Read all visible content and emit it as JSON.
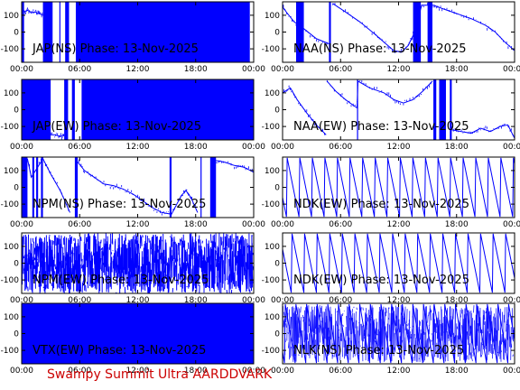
{
  "chart_data": [
    {
      "type": "line",
      "title": "JAP(NS) Phase: 13-Nov-2025",
      "pattern": "bands",
      "bands": [
        [
          0,
          0.25
        ],
        [
          2.2,
          3.2
        ],
        [
          3.9,
          4.0
        ],
        [
          4.5,
          4.9
        ],
        [
          5.6,
          23.6
        ]
      ],
      "trace": [
        [
          0.25,
          120
        ],
        [
          0.6,
          130
        ],
        [
          1.0,
          115
        ],
        [
          1.4,
          120
        ],
        [
          1.8,
          110
        ],
        [
          2.2,
          100
        ]
      ],
      "x_ticks": [
        "00:00",
        "06:00",
        "12:00",
        "18:00",
        "00:00"
      ],
      "y_ticks": [
        100,
        0,
        -100
      ],
      "xlim": [
        0,
        24
      ],
      "ylim": [
        -180,
        180
      ]
    },
    {
      "type": "line",
      "title": "NAA(NS) Phase: 13-Nov-2025",
      "pattern": "bands",
      "bands": [
        [
          1.4,
          2.2
        ],
        [
          4.8,
          5.0
        ],
        [
          13.5,
          14.3
        ],
        [
          15.0,
          15.5
        ]
      ],
      "trace": [
        [
          0,
          150
        ],
        [
          0.5,
          110
        ],
        [
          1.2,
          60
        ],
        [
          2.2,
          20
        ],
        [
          3.5,
          -40
        ],
        [
          4.8,
          -70
        ],
        [
          5.2,
          170
        ],
        [
          6.5,
          120
        ],
        [
          8,
          60
        ],
        [
          9.5,
          -10
        ],
        [
          10.5,
          -60
        ],
        [
          11.5,
          -110
        ],
        [
          12.3,
          -120
        ],
        [
          13.0,
          -80
        ],
        [
          13.5,
          -20
        ],
        [
          14.4,
          160
        ],
        [
          15.6,
          160
        ],
        [
          16.5,
          140
        ],
        [
          18,
          110
        ],
        [
          19.5,
          80
        ],
        [
          21,
          40
        ],
        [
          22,
          0
        ],
        [
          23,
          -60
        ],
        [
          24,
          -110
        ]
      ],
      "x_ticks": [
        "00:00",
        "06:00",
        "12:00",
        "18:00",
        "00:00"
      ],
      "y_ticks": [
        100,
        0,
        -100
      ],
      "xlim": [
        0,
        24
      ],
      "ylim": [
        -180,
        180
      ]
    },
    {
      "type": "line",
      "title": "JAP(EW) Phase: 13-Nov-2025",
      "pattern": "bands",
      "bands": [
        [
          0,
          3.0
        ],
        [
          4.4,
          4.8
        ],
        [
          5.2,
          5.5
        ],
        [
          6.2,
          24
        ]
      ],
      "trace": [
        [
          3.0,
          -150
        ],
        [
          3.5,
          -150
        ],
        [
          4.0,
          -160
        ],
        [
          4.4,
          -150
        ]
      ],
      "x_ticks": [
        "00:00",
        "06:00",
        "12:00",
        "18:00",
        "00:00"
      ],
      "y_ticks": [
        100,
        0,
        -100
      ],
      "xlim": [
        0,
        24
      ],
      "ylim": [
        -180,
        180
      ]
    },
    {
      "type": "line",
      "title": "NAA(EW) Phase: 13-Nov-2025",
      "pattern": "bands",
      "bands": [
        [
          7.7,
          7.8
        ],
        [
          15.6,
          15.9
        ],
        [
          16.2,
          16.9
        ],
        [
          17.3,
          17.5
        ]
      ],
      "trace": [
        [
          0,
          100
        ],
        [
          0.8,
          130
        ],
        [
          1.5,
          60
        ],
        [
          2.5,
          -20
        ],
        [
          3.5,
          -90
        ],
        [
          4.5,
          -150
        ],
        [
          4.6,
          170
        ],
        [
          5.5,
          110
        ],
        [
          6.5,
          60
        ],
        [
          7.7,
          10
        ],
        [
          7.8,
          170
        ],
        [
          9,
          130
        ],
        [
          10.5,
          100
        ],
        [
          11.5,
          60
        ],
        [
          12.5,
          40
        ],
        [
          13.5,
          60
        ],
        [
          14.5,
          110
        ],
        [
          15.5,
          170
        ],
        [
          17.5,
          -120
        ],
        [
          18.5,
          -130
        ],
        [
          19.5,
          -140
        ],
        [
          20.5,
          -110
        ],
        [
          21.5,
          -130
        ],
        [
          22.5,
          -100
        ],
        [
          23.3,
          -90
        ],
        [
          24,
          -170
        ]
      ],
      "x_ticks": [
        "00:00",
        "06:00",
        "12:00",
        "18:00",
        "00:00"
      ],
      "y_ticks": [
        100,
        0,
        -100
      ],
      "xlim": [
        0,
        24
      ],
      "ylim": [
        -180,
        180
      ]
    },
    {
      "type": "line",
      "title": "NPM(NS) Phase: 13-Nov-2025",
      "pattern": "bands",
      "bands": [
        [
          0,
          0.6
        ],
        [
          1.1,
          1.3
        ],
        [
          1.5,
          1.7
        ],
        [
          2.0,
          2.2
        ],
        [
          5.5,
          5.8
        ],
        [
          15.3,
          15.5
        ],
        [
          18.5,
          18.6
        ],
        [
          19.5,
          20.1
        ]
      ],
      "trace": [
        [
          0.6,
          170
        ],
        [
          1.0,
          60
        ],
        [
          2.2,
          170
        ],
        [
          3.0,
          80
        ],
        [
          4.0,
          -20
        ],
        [
          5.0,
          -150
        ],
        [
          5.8,
          150
        ],
        [
          6.5,
          100
        ],
        [
          7.5,
          60
        ],
        [
          8.5,
          20
        ],
        [
          9.5,
          10
        ],
        [
          10.5,
          -10
        ],
        [
          11.5,
          -40
        ],
        [
          12.5,
          -80
        ],
        [
          13.5,
          -120
        ],
        [
          14.5,
          -150
        ],
        [
          15.5,
          -160
        ],
        [
          16.5,
          -50
        ],
        [
          17.0,
          -20
        ],
        [
          17.5,
          -60
        ],
        [
          18.2,
          -150
        ],
        [
          20.1,
          160
        ],
        [
          21,
          150
        ],
        [
          22,
          130
        ],
        [
          23,
          120
        ],
        [
          24,
          90
        ]
      ],
      "x_ticks": [
        "00:00",
        "06:00",
        "12:00",
        "18:00",
        "00:00"
      ],
      "y_ticks": [
        100,
        0,
        -100
      ],
      "xlim": [
        0,
        24
      ],
      "ylim": [
        -180,
        180
      ]
    },
    {
      "type": "line",
      "title": "NDK(EW) Phase: 13-Nov-2025",
      "pattern": "sawtooth",
      "period": 1.3,
      "offset": 0.4,
      "amp_high": 175,
      "amp_low": -175,
      "x_ticks": [
        "00:00",
        "06:00",
        "12:00",
        "18:00",
        "00:00"
      ],
      "y_ticks": [
        100,
        0,
        -100
      ],
      "xlim": [
        0,
        24
      ],
      "ylim": [
        -180,
        180
      ]
    },
    {
      "type": "line",
      "title": "NPM(EW) Phase: 13-Nov-2025",
      "pattern": "noise",
      "density": 0.9,
      "x_ticks": [
        "00:00",
        "06:00",
        "12:00",
        "18:00",
        "00:00"
      ],
      "y_ticks": [
        100,
        0,
        -100
      ],
      "xlim": [
        0,
        24
      ],
      "ylim": [
        -180,
        180
      ]
    },
    {
      "type": "line",
      "title": "NDK(EW) Phase: 13-Nov-2025",
      "pattern": "sawtooth",
      "period": 1.3,
      "offset": 0.9,
      "amp_high": 175,
      "amp_low": -175,
      "x_ticks": [
        "00:00",
        "06:00",
        "12:00",
        "18:00",
        "00:00"
      ],
      "y_ticks": [
        100,
        0,
        -100
      ],
      "xlim": [
        0,
        24
      ],
      "ylim": [
        -180,
        180
      ]
    },
    {
      "type": "line",
      "title": "VTX(EW) Phase: 13-Nov-2025",
      "pattern": "bands",
      "bands": [
        [
          0,
          24
        ]
      ],
      "trace": [],
      "x_ticks": [
        "00:00",
        "06:00",
        "12:00",
        "18:00",
        "00:00"
      ],
      "y_ticks": [
        100,
        0,
        -100
      ],
      "xlim": [
        0,
        24
      ],
      "ylim": [
        -180,
        180
      ]
    },
    {
      "type": "line",
      "title": "NLK(NS) Phase: 13-Nov-2025",
      "pattern": "mixed",
      "period": 1.1,
      "offset": 0.2,
      "amp_high": 175,
      "amp_low": -175,
      "x_ticks": [
        "00:00",
        "06:00",
        "12:00",
        "18:00",
        "00:00"
      ],
      "y_ticks": [
        100,
        0,
        -100
      ],
      "xlim": [
        0,
        24
      ],
      "ylim": [
        -180,
        180
      ]
    }
  ],
  "footer": "Swampy Summit Ultra AARDDVARK",
  "colors": {
    "trace": "#0000ff",
    "footer": "#cc0000",
    "axes": "#000000",
    "background": "#ffffff"
  }
}
